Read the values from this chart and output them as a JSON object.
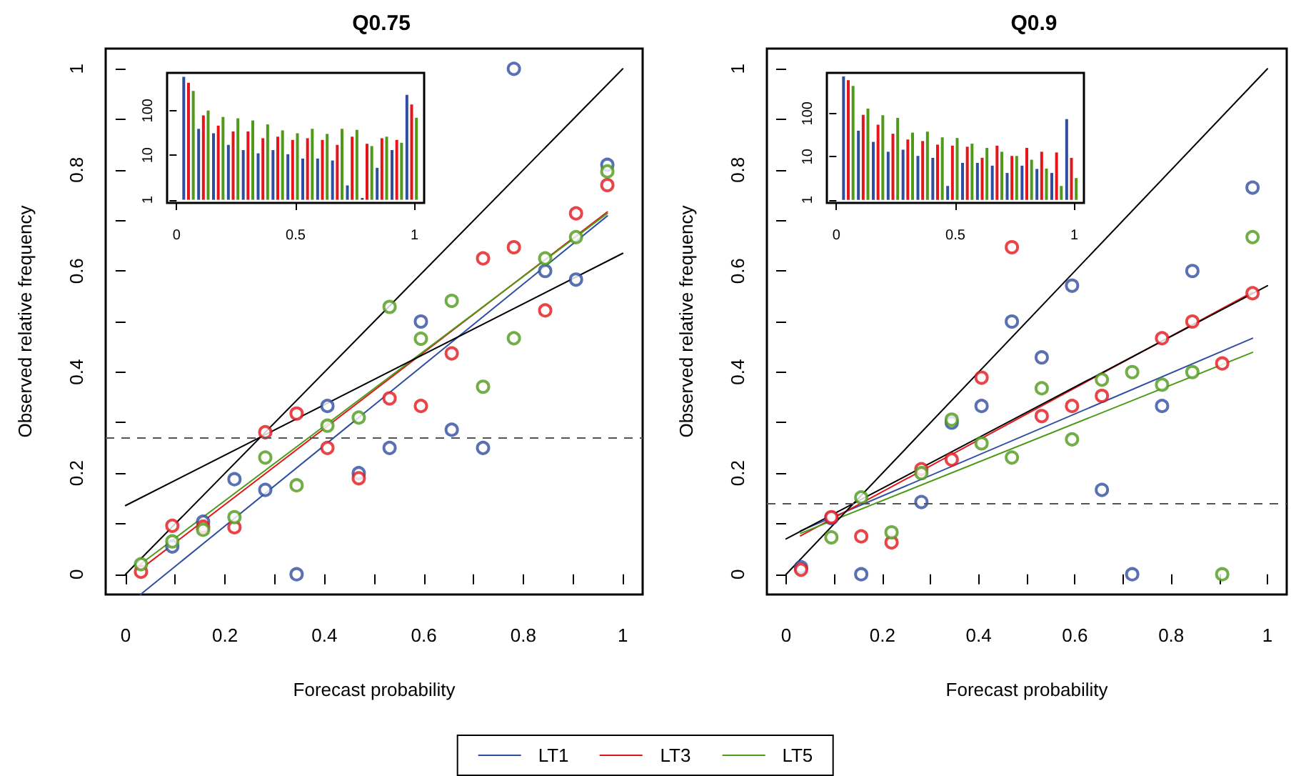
{
  "chart_data": [
    {
      "type": "scatter",
      "title": "Q0.75",
      "xlabel": "Forecast probability",
      "ylabel": "Observed relative frequency",
      "x": [
        0.031,
        0.094,
        0.156,
        0.219,
        0.281,
        0.344,
        0.406,
        0.469,
        0.531,
        0.594,
        0.656,
        0.719,
        0.781,
        0.844,
        0.906,
        0.969
      ],
      "xlim": [
        -0.04,
        1.04
      ],
      "ylim": [
        -0.04,
        1.04
      ],
      "xticks": [
        0,
        {
          "value": 0.1,
          "label": null
        },
        0.2,
        {
          "value": 0.3,
          "label": null
        },
        0.4,
        {
          "value": 0.5,
          "label": null
        },
        0.6,
        {
          "value": 0.7,
          "label": null
        },
        0.8,
        {
          "value": 0.9,
          "label": null
        },
        1
      ],
      "yticks": [
        0,
        {
          "value": 0.1,
          "label": null
        },
        0.2,
        {
          "value": 0.3,
          "label": null
        },
        0.4,
        {
          "value": 0.5,
          "label": null
        },
        0.6,
        {
          "value": 0.7,
          "label": null
        },
        0.8,
        {
          "value": 0.9,
          "label": null
        },
        1
      ],
      "marker": "circle",
      "legend": "bottom",
      "series": [
        {
          "name": "LT1",
          "color": "#304ea0",
          "values": [
            null,
            0.055,
            0.104,
            0.188,
            0.167,
            0,
            0.333,
            0.2,
            0.25,
            0.5,
            0.286,
            0.25,
            1,
            0.6,
            0.583,
            0.81
          ]
        },
        {
          "name": "LT3",
          "color": "#e4161c",
          "values": [
            0.005,
            0.096,
            0.094,
            0.093,
            0.281,
            0.318,
            0.25,
            0.19,
            0.348,
            0.333,
            0.437,
            0.625,
            0.647,
            0.522,
            0.714,
            0.77
          ]
        },
        {
          "name": "LT5",
          "color": "#4f9a1a",
          "values": [
            0.02,
            0.065,
            0.088,
            0.113,
            0.231,
            0.176,
            0.294,
            0.31,
            0.529,
            0.466,
            0.541,
            0.371,
            0.467,
            0.625,
            0.667,
            0.797
          ]
        },
        {
          "type": "line",
          "marker": "none",
          "color": "#304ea0",
          "x": [
            0.03,
            0.969
          ],
          "values": [
            -0.04,
            0.709
          ]
        },
        {
          "type": "line",
          "marker": "none",
          "color": "#e4161c",
          "x": [
            0.03,
            0.969
          ],
          "values": [
            0.01,
            0.717
          ]
        },
        {
          "type": "line",
          "marker": "none",
          "color": "#4f9a1a",
          "x": [
            0.03,
            0.969
          ],
          "values": [
            0.02,
            0.714
          ]
        },
        {
          "type": "line",
          "marker": "none",
          "color": "#000000",
          "x": [
            0,
            1
          ],
          "values": [
            0,
            1
          ]
        },
        {
          "type": "line",
          "marker": "none",
          "color": "#000000",
          "x": [
            0,
            1
          ],
          "values": [
            0.136,
            0.635
          ]
        }
      ],
      "ref_lines": [
        {
          "axis": "y",
          "value": 0.271,
          "color": "#555555",
          "line_style": "dashed"
        }
      ]
    },
    {
      "type": "bar",
      "log": "y",
      "xlim": [
        -0.04,
        1.04
      ],
      "xticks": [
        0,
        0.5,
        1
      ],
      "ylim": [
        0.85,
        700
      ],
      "yticks": [
        1,
        10,
        100
      ],
      "series": [
        {
          "color": "#304ea0",
          "x": [
            0.03,
            0.0925,
            0.155,
            0.2175,
            0.28,
            0.3425,
            0.405,
            0.4675,
            0.53,
            0.5925,
            0.655,
            0.7175,
            0.78,
            0.8425,
            0.905,
            0.9675
          ],
          "values": [
            570,
            39,
            31,
            17,
            13,
            11,
            13,
            10.5,
            8.4,
            8.4,
            7.6,
            2.1,
            1.1,
            5.2,
            13,
            225
          ]
        },
        {
          "color": "#e4161c",
          "x": [
            0.05,
            0.1125,
            0.175,
            0.2375,
            0.3,
            0.3625,
            0.425,
            0.4875,
            0.55,
            0.6125,
            0.675,
            0.7375,
            0.8,
            0.8625,
            0.925,
            0.9875
          ],
          "values": [
            420,
            78,
            46,
            34,
            34,
            24,
            26,
            22,
            24,
            22,
            17,
            26,
            18,
            24,
            22,
            137
          ]
        },
        {
          "color": "#4f9a1a",
          "x": [
            0.07,
            0.1325,
            0.195,
            0.2575,
            0.32,
            0.3825,
            0.445,
            0.5075,
            0.57,
            0.6325,
            0.695,
            0.7575,
            0.82,
            0.8825,
            0.945,
            1.0075
          ],
          "values": [
            275,
            100,
            72,
            67,
            60,
            49,
            36,
            31,
            39,
            30,
            39,
            37,
            16,
            26,
            19,
            69
          ]
        }
      ]
    },
    {
      "type": "scatter",
      "title": "Q0.9",
      "xlabel": "Forecast probability",
      "ylabel": "Observed relative frequency",
      "legend": "bottom",
      "x": [
        0.031,
        0.094,
        0.156,
        0.219,
        0.281,
        0.344,
        0.406,
        0.469,
        0.531,
        0.594,
        0.656,
        0.719,
        0.781,
        0.844,
        0.906,
        0.969
      ],
      "xlim": [
        -0.04,
        1.04
      ],
      "ylim": [
        -0.04,
        1.04
      ],
      "xticks": [
        0,
        {
          "value": 0.1,
          "label": null
        },
        0.2,
        {
          "value": 0.3,
          "label": null
        },
        0.4,
        {
          "value": 0.5,
          "label": null
        },
        0.6,
        {
          "value": 0.7,
          "label": null
        },
        0.8,
        {
          "value": 0.9,
          "label": null
        },
        1
      ],
      "yticks": [
        0,
        {
          "value": 0.1,
          "label": null
        },
        0.2,
        {
          "value": 0.3,
          "label": null
        },
        0.4,
        {
          "value": 0.5,
          "label": null
        },
        0.6,
        {
          "value": 0.7,
          "label": null
        },
        0.8,
        {
          "value": 0.9,
          "label": null
        },
        1
      ],
      "marker": "circle",
      "series": [
        {
          "name": "LT1",
          "color": "#304ea0",
          "values": [
            0.014,
            0.111,
            0,
            null,
            0.143,
            0.3,
            0.333,
            0.5,
            0.429,
            0.571,
            0.167,
            0,
            0.333,
            0.6,
            null,
            0.765
          ]
        },
        {
          "name": "LT3",
          "color": "#e4161c",
          "values": [
            0.009,
            0.113,
            0.075,
            0.063,
            0.208,
            0.227,
            0.389,
            0.647,
            0.313,
            0.333,
            0.353,
            null,
            0.467,
            0.5,
            0.417,
            0.556
          ]
        },
        {
          "name": "LT5",
          "color": "#4f9a1a",
          "values": [
            null,
            0.073,
            0.152,
            0.083,
            0.2,
            0.306,
            0.259,
            0.231,
            0.368,
            0.267,
            0.385,
            0.4,
            0.375,
            0.4,
            0,
            0.667
          ]
        },
        {
          "type": "line",
          "marker": "none",
          "color": "#304ea0",
          "x": [
            0.03,
            0.969
          ],
          "values": [
            0.086,
            0.467
          ]
        },
        {
          "type": "line",
          "marker": "none",
          "color": "#e4161c",
          "x": [
            0.03,
            0.969
          ],
          "values": [
            0.076,
            0.558
          ]
        },
        {
          "type": "line",
          "marker": "none",
          "color": "#4f9a1a",
          "x": [
            0.03,
            0.969
          ],
          "values": [
            0.081,
            0.439
          ]
        },
        {
          "type": "line",
          "marker": "none",
          "color": "#000000",
          "x": [
            0,
            1
          ],
          "values": [
            0,
            1
          ]
        },
        {
          "type": "line",
          "marker": "none",
          "color": "#000000",
          "x": [
            0,
            1
          ],
          "values": [
            0.07,
            0.571
          ]
        }
      ],
      "ref_lines": [
        {
          "axis": "y",
          "value": 0.141,
          "color": "#555555",
          "line_style": "dashed"
        }
      ]
    },
    {
      "type": "bar",
      "log": "y",
      "xlim": [
        -0.04,
        1.04
      ],
      "xticks": [
        0,
        0.5,
        1
      ],
      "ylim": [
        0.85,
        870
      ],
      "yticks": [
        1,
        10,
        100
      ],
      "series": [
        {
          "color": "#304ea0",
          "x": [
            0.03,
            0.0925,
            0.155,
            0.2175,
            0.28,
            0.3425,
            0.405,
            0.4675,
            0.53,
            0.5925,
            0.655,
            0.7175,
            0.78,
            0.8425,
            0.905,
            0.9675
          ],
          "values": [
            720,
            40,
            22,
            13,
            14.5,
            10.4,
            9.4,
            2.1,
            7.2,
            7.2,
            6.2,
            4.2,
            6.2,
            5.2,
            4.2,
            74
          ]
        },
        {
          "color": "#e4161c",
          "x": [
            0.05,
            0.1125,
            0.175,
            0.2375,
            0.3,
            0.3625,
            0.425,
            0.4875,
            0.55,
            0.6125,
            0.675,
            0.7375,
            0.8,
            0.8625,
            0.925,
            0.9875
          ],
          "values": [
            590,
            93,
            55,
            34,
            25,
            23,
            19,
            18,
            17,
            9.4,
            18,
            10.4,
            16,
            13,
            12.5,
            9.4
          ]
        },
        {
          "color": "#4f9a1a",
          "x": [
            0.07,
            0.1325,
            0.195,
            0.2575,
            0.32,
            0.3825,
            0.445,
            0.5075,
            0.57,
            0.6325,
            0.695,
            0.7575,
            0.82,
            0.8825,
            0.945,
            1.0075
          ],
          "values": [
            435,
            130,
            91,
            79,
            36,
            38,
            28,
            27,
            20,
            16,
            13,
            10.4,
            8.5,
            5.3,
            2.1,
            3.2
          ]
        }
      ]
    }
  ]
}
